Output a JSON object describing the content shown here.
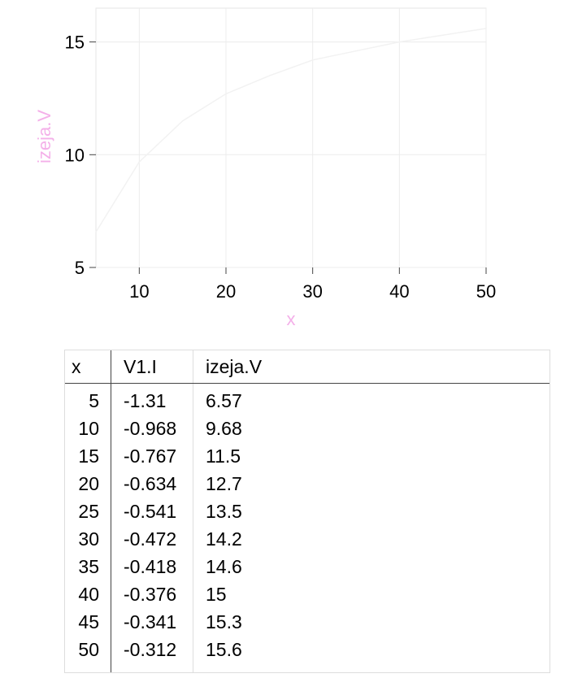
{
  "chart_data": {
    "type": "line",
    "xlabel": "x",
    "ylabel": "izeja.V",
    "xlim": [
      5,
      50
    ],
    "ylim": [
      5,
      16.5
    ],
    "xticks": [
      10,
      20,
      30,
      40,
      50
    ],
    "yticks": [
      5,
      10,
      15
    ],
    "grid": true,
    "label_color": "#f4b0e9",
    "series": [
      {
        "x": [
          5,
          10,
          15,
          20,
          25,
          30,
          35,
          40,
          45,
          50
        ],
        "y": [
          6.57,
          9.68,
          11.5,
          12.7,
          13.5,
          14.2,
          14.6,
          15,
          15.3,
          15.6
        ],
        "color": "#f2f2f2"
      }
    ]
  },
  "table": {
    "headers": [
      "x",
      "V1.I",
      "izeja.V"
    ],
    "rows": [
      [
        "5",
        "-1.31",
        "6.57"
      ],
      [
        "10",
        "-0.968",
        "9.68"
      ],
      [
        "15",
        "-0.767",
        "11.5"
      ],
      [
        "20",
        "-0.634",
        "12.7"
      ],
      [
        "25",
        "-0.541",
        "13.5"
      ],
      [
        "30",
        "-0.472",
        "14.2"
      ],
      [
        "35",
        "-0.418",
        "14.6"
      ],
      [
        "40",
        "-0.376",
        "15"
      ],
      [
        "45",
        "-0.341",
        "15.3"
      ],
      [
        "50",
        "-0.312",
        "15.6"
      ]
    ]
  }
}
